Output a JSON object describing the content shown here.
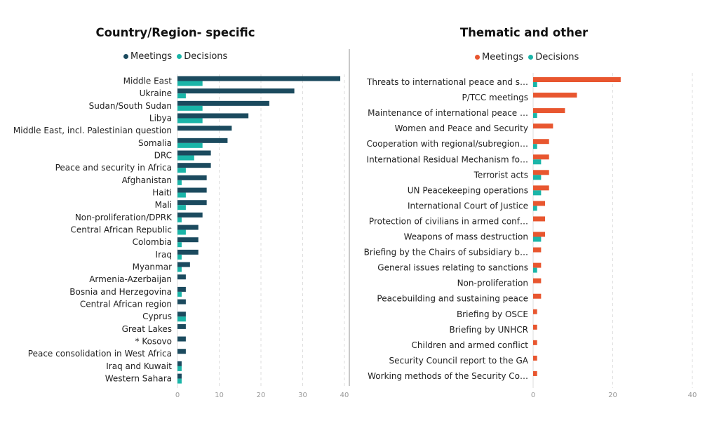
{
  "colors": {
    "meetings_left": "#1b4a5e",
    "decisions": "#1ab5a8",
    "meetings_right": "#e8562f",
    "grid": "#dddddd",
    "divider": "#c8c8c8"
  },
  "chart_data": [
    {
      "type": "bar",
      "orientation": "horizontal",
      "title": "Country/Region- specific",
      "legend": [
        "Meetings",
        "Decisions"
      ],
      "legend_position": "top-center",
      "xlim": [
        0,
        40
      ],
      "xticks": [
        0,
        10,
        20,
        30,
        40
      ],
      "grid": true,
      "categories": [
        "Middle East",
        "Ukraine",
        "Sudan/South Sudan",
        "Libya",
        "Middle East, incl. Palestinian question",
        "Somalia",
        "DRC",
        "Peace and security in Africa",
        "Afghanistan",
        "Haiti",
        "Mali",
        "Non-proliferation/DPRK",
        "Central African Republic",
        "Colombia",
        "Iraq",
        "Myanmar",
        "Armenia-Azerbaijan",
        "Bosnia and Herzegovina",
        "Central African region",
        "Cyprus",
        "Great Lakes",
        "* Kosovo",
        "Peace consolidation in West Africa",
        "Iraq and Kuwait",
        "Western Sahara"
      ],
      "series": [
        {
          "name": "Meetings",
          "values": [
            39,
            28,
            22,
            17,
            13,
            12,
            8,
            8,
            7,
            7,
            7,
            6,
            5,
            5,
            5,
            3,
            2,
            2,
            2,
            2,
            2,
            2,
            2,
            1,
            1
          ]
        },
        {
          "name": "Decisions",
          "values": [
            6,
            2,
            6,
            6,
            0,
            6,
            4,
            2,
            1,
            2,
            2,
            1,
            2,
            1,
            1,
            1,
            0,
            1,
            0,
            2,
            0,
            0,
            0,
            1,
            1
          ]
        }
      ]
    },
    {
      "type": "bar",
      "orientation": "horizontal",
      "title": "Thematic and other",
      "legend": [
        "Meetings",
        "Decisions"
      ],
      "legend_position": "top-center",
      "xlim": [
        0,
        40
      ],
      "xticks": [
        0,
        20,
        40
      ],
      "grid": true,
      "categories": [
        "Threats to international peace and s…",
        "P/TCC meetings",
        "Maintenance of international peace …",
        "Women and Peace and Security",
        "Cooperation with regional/subregion…",
        "International Residual Mechanism fo…",
        "Terrorist acts",
        "UN Peacekeeping operations",
        "International Court of Justice",
        "Protection of civilians in armed conf…",
        "Weapons of mass destruction",
        "Briefing by the Chairs of subsidiary b…",
        "General issues relating to sanctions",
        "Non-proliferation",
        "Peacebuilding and sustaining peace",
        "Briefing by OSCE",
        "Briefing by UNHCR",
        "Children and armed conflict",
        "Security Council report to the GA",
        "Working methods of the Security Co…"
      ],
      "series": [
        {
          "name": "Meetings",
          "values": [
            22,
            11,
            8,
            5,
            4,
            4,
            4,
            4,
            3,
            3,
            3,
            2,
            2,
            2,
            2,
            1,
            1,
            1,
            1,
            1
          ]
        },
        {
          "name": "Decisions",
          "values": [
            1,
            0,
            1,
            0,
            1,
            2,
            2,
            2,
            1,
            0,
            2,
            0,
            1,
            0,
            0,
            0,
            0,
            0,
            0,
            0
          ]
        }
      ]
    }
  ]
}
